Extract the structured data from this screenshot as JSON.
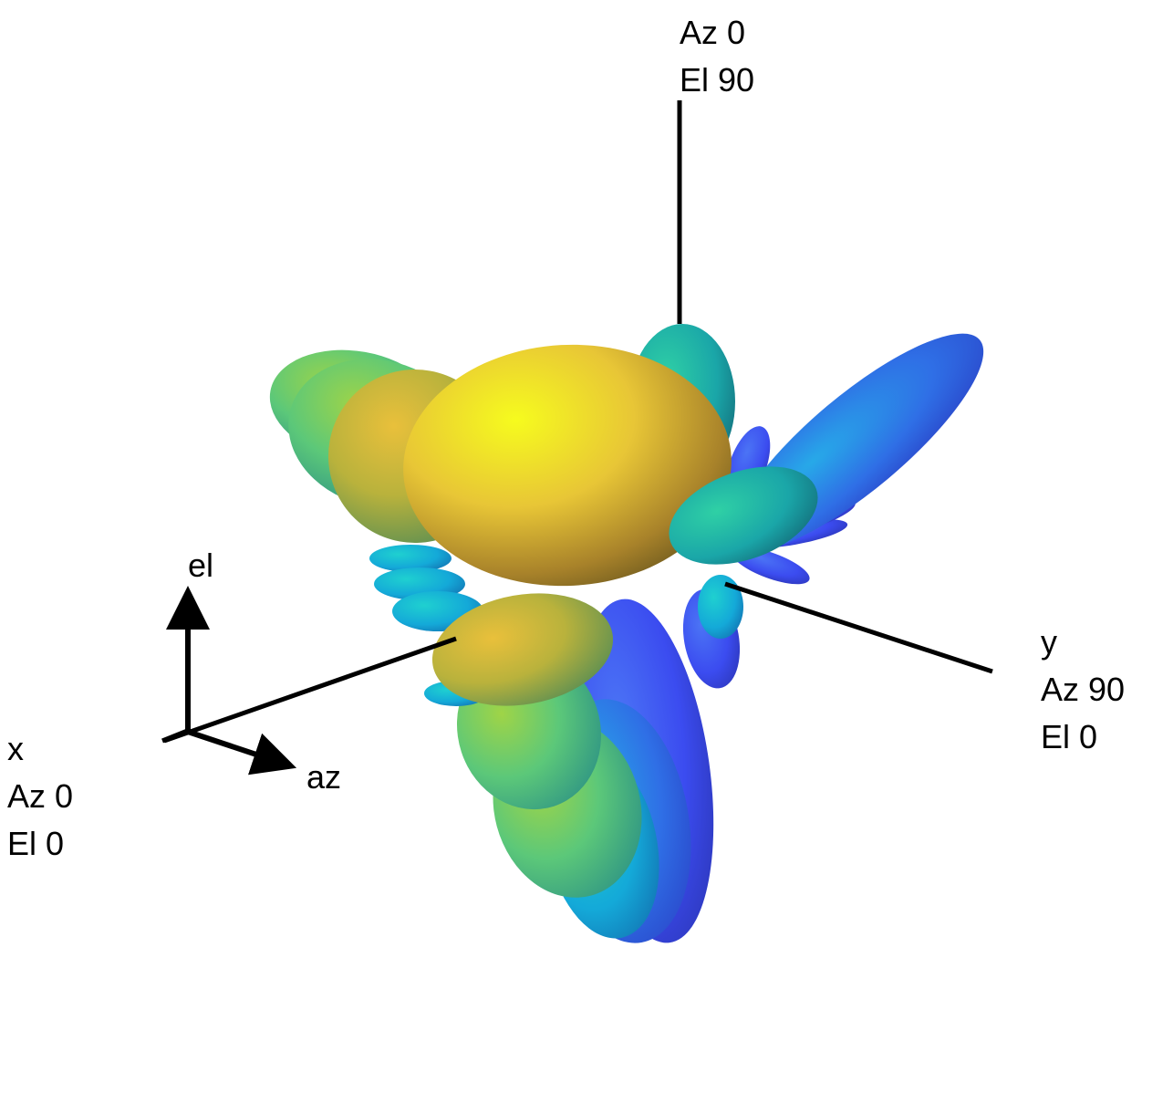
{
  "chart_data": {
    "type": "3d-radiation-pattern",
    "title": "",
    "axes": {
      "z": {
        "lines": [
          "Az 0",
          "El 90"
        ]
      },
      "x": {
        "lines": [
          "x",
          "Az 0",
          "El 0"
        ]
      },
      "y": {
        "lines": [
          "y",
          "Az 90",
          "El 0"
        ]
      }
    },
    "direction_indicator": {
      "el_label": "el",
      "az_label": "az"
    },
    "colormap": [
      "#3b4cf0",
      "#2a97e3",
      "#1ec2b8",
      "#48cf86",
      "#a9d13f",
      "#e2c733",
      "#f4f31d"
    ],
    "grid": false,
    "legend": "none"
  }
}
